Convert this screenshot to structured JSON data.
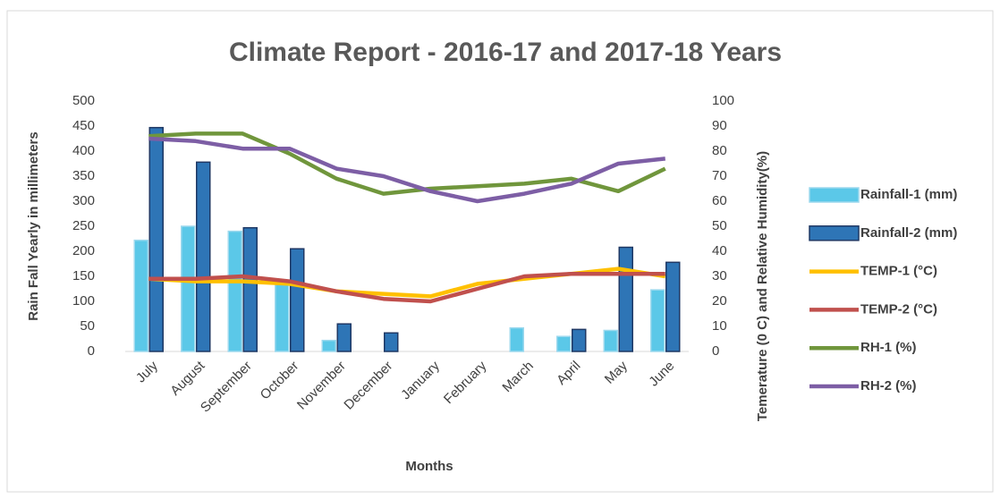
{
  "chart_data": {
    "type": "bar",
    "title": "Climate Report -  2016-17 and 2017-18 Years",
    "x_label": "Months",
    "y_label": "Rain Fall Yearly in millimeters",
    "y2_label": "Temerature (0 C) and Relative Humidity(%)",
    "categories": [
      "July",
      "August",
      "September",
      "October",
      "November",
      "December",
      "January",
      "February",
      "March",
      "April",
      "May",
      "June"
    ],
    "series": [
      {
        "name": "Rainfall-1 (mm)",
        "type": "bar",
        "color": "#5bc8e8",
        "values": [
          222,
          250,
          240,
          140,
          22,
          0,
          0,
          0,
          47,
          30,
          42,
          123
        ]
      },
      {
        "name": "Rainfall-2 (mm)",
        "type": "bar",
        "color": "#2e75b6",
        "values": [
          447,
          378,
          247,
          205,
          55,
          37,
          0,
          0,
          0,
          44,
          208,
          178
        ]
      },
      {
        "name": "TEMP-1 (°C)",
        "type": "line",
        "axis": "y2",
        "color": "#ffc000",
        "values": [
          29,
          28,
          28,
          27,
          24,
          23,
          22,
          27,
          29,
          31,
          33,
          30
        ]
      },
      {
        "name": "TEMP-2 (°C)",
        "type": "line",
        "axis": "y2",
        "color": "#c0504d",
        "values": [
          29,
          29,
          30,
          28,
          24,
          21,
          20,
          25,
          30,
          31,
          31,
          31
        ]
      },
      {
        "name": "RH-1 (%)",
        "type": "line",
        "axis": "y2",
        "color": "#70963c",
        "values": [
          86,
          87,
          87,
          79,
          69,
          63,
          65,
          66,
          67,
          69,
          64,
          73
        ]
      },
      {
        "name": "RH-2 (%)",
        "type": "line",
        "axis": "y2",
        "color": "#7d5ea5",
        "values": [
          85,
          84,
          81,
          81,
          73,
          70,
          64,
          60,
          63,
          67,
          75,
          77
        ]
      }
    ],
    "ylim": [
      0,
      500
    ],
    "yticks": [
      0,
      50,
      100,
      150,
      200,
      250,
      300,
      350,
      400,
      450,
      500
    ],
    "y2lim": [
      0,
      100
    ],
    "y2ticks": [
      0,
      10,
      20,
      30,
      40,
      50,
      60,
      70,
      80,
      90,
      100
    ],
    "legend": "right"
  }
}
